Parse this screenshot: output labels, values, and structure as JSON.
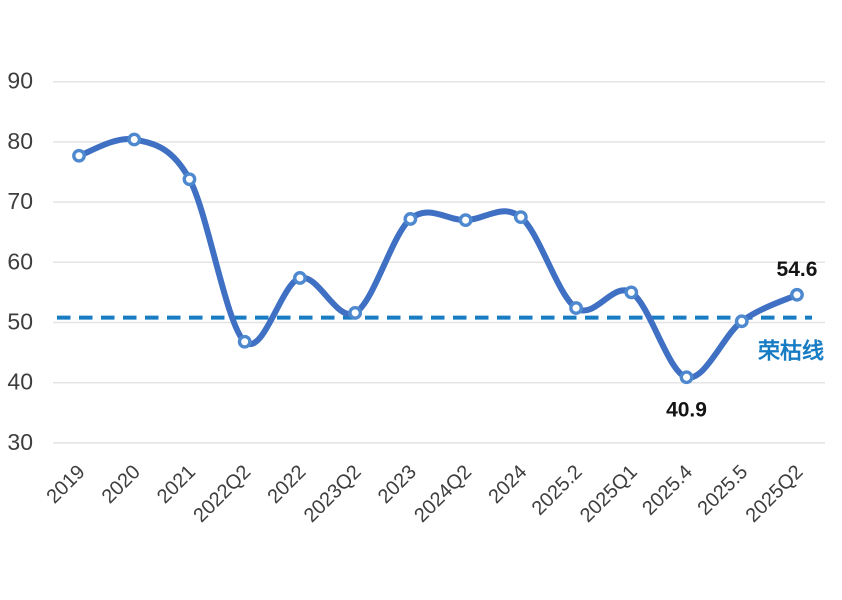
{
  "chart_data": {
    "type": "line",
    "title": "",
    "xlabel": "",
    "ylabel": "",
    "categories": [
      "2019",
      "2020",
      "2021",
      "2022Q2",
      "2022",
      "2023Q2",
      "2023",
      "2024Q2",
      "2024",
      "2025.2",
      "2025Q1",
      "2025.4",
      "2025.5",
      "2025Q2"
    ],
    "values": [
      77.7,
      80.4,
      73.8,
      46.8,
      57.4,
      51.6,
      67.2,
      67.0,
      67.5,
      52.4,
      55.0,
      40.9,
      50.2,
      54.6
    ],
    "ylim": [
      30,
      90
    ],
    "yticks": [
      30,
      40,
      50,
      60,
      70,
      80,
      90
    ],
    "grid": "horizontal",
    "smooth": true,
    "legend": "none",
    "point_labels": [
      {
        "index": 13,
        "text": "54.6",
        "position": "above"
      },
      {
        "index": 11,
        "text": "40.9",
        "position": "below"
      }
    ],
    "reference_line": {
      "value": 50.8,
      "label": "荣枯线",
      "style": "dashed"
    },
    "colors": {
      "line": "#3F70C3",
      "marker_stroke": "#4E89CF",
      "marker_fill": "#FFFFFF",
      "reference": "#177CC4",
      "grid": "#E4E4E4",
      "axis_text": "#3E3E3E",
      "data_label": "#141414"
    }
  }
}
